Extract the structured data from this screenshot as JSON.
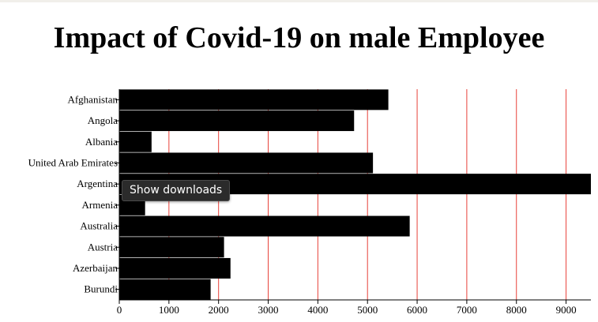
{
  "chart_data": {
    "type": "bar",
    "orientation": "horizontal",
    "title": "Impact of Covid-19 on male Employee",
    "categories": [
      "Afghanistan",
      "Angola",
      "Albania",
      "United Arab Emirates",
      "Argentina",
      "Armenia",
      "Australia",
      "Austria",
      "Azerbaijan",
      "Burundi"
    ],
    "values": [
      5420,
      4730,
      650,
      5110,
      9500,
      520,
      5850,
      2110,
      2240,
      1840
    ],
    "xlim": [
      0,
      9500
    ],
    "xticks": [
      0,
      1000,
      2000,
      3000,
      4000,
      5000,
      6000,
      7000,
      8000,
      9000
    ],
    "grid": "vertical",
    "bar_color": "#000000",
    "grid_color": "#e8423a"
  },
  "tooltip": {
    "text": "Show downloads"
  }
}
